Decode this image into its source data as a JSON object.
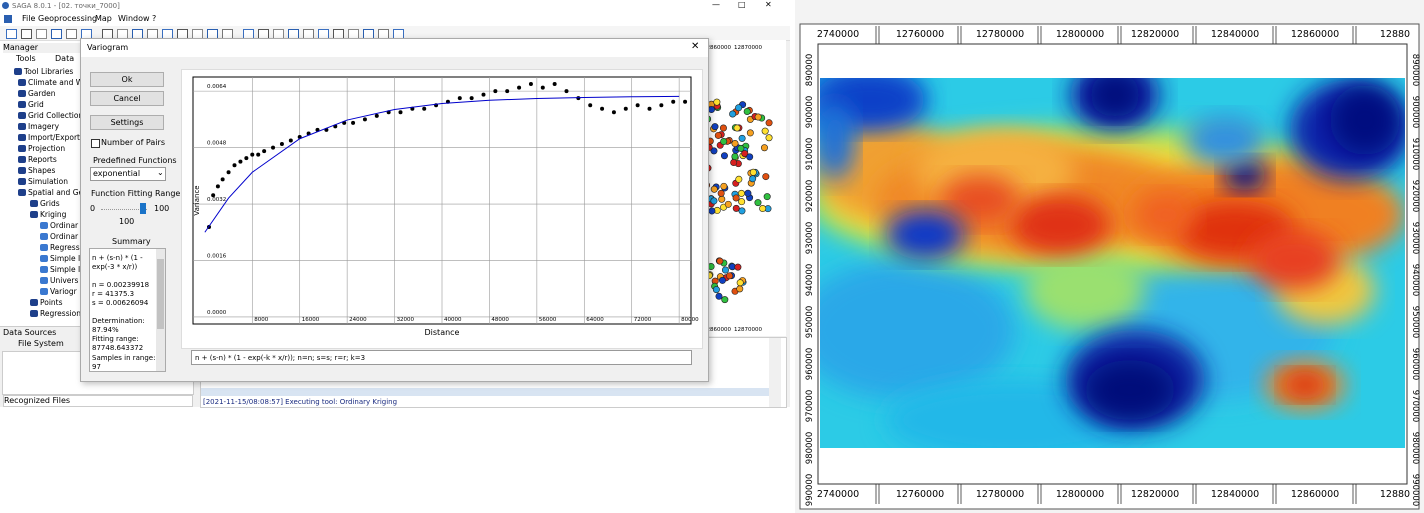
{
  "window": {
    "title": "SAGA 8.0.1 - [02. точки_7000]",
    "menu": [
      "File",
      "Geoprocessing",
      "Map",
      "Window",
      "?"
    ]
  },
  "manager": {
    "title": "Manager",
    "tabs": [
      "Tools",
      "Data"
    ],
    "tree": [
      "Tool Libraries",
      "Climate and W",
      "Garden",
      "Grid",
      "Grid Collection",
      "Imagery",
      "Import/Export",
      "Projection",
      "Reports",
      "Shapes",
      "Simulation",
      "Spatial and Geo",
      "Grids",
      "Kriging",
      "Ordinar",
      "Ordinar",
      "Regress",
      "Simple I",
      "Simple I",
      "Univers",
      "Variogr",
      "Points",
      "Regression"
    ]
  },
  "data_sources": {
    "title": "Data Sources",
    "tabs": [
      "File System"
    ],
    "footer": "Recognized Files"
  },
  "background_map": {
    "top_labels": [
      "12860000",
      "12870000"
    ],
    "bottom_labels": [
      "12860000",
      "12870000"
    ]
  },
  "log": {
    "line": "[2021-11-15/08:08:57] Executing tool: Ordinary Kriging"
  },
  "dialog": {
    "title": "Variogram",
    "buttons": [
      "Ok",
      "Cancel",
      "Settings"
    ],
    "checkbox": "Number of Pairs",
    "functions_label": "Predefined Functions",
    "function": "exponential",
    "range_label": "Function Fitting Range",
    "range_min": "0",
    "range_max": "100",
    "range_value": "100",
    "summary_title": "Summary",
    "summary": [
      "n + (s-n) * (1 -",
      "exp(-3 * x/r))",
      "n = 0.00239918",
      "r = 41375.3",
      "s = 0.00626094",
      "Determination:",
      "87.94%",
      "Fitting range:",
      "87748.643372",
      "Samples in range:",
      "97"
    ],
    "formula": "n + (s-n) * (1 - exp(-k * x/r)); n=n; s=s; r=r; k=3"
  },
  "chart_data": {
    "type": "scatter",
    "xlabel": "Distance",
    "ylabel": "Variance",
    "xlim": [
      -2000,
      82000
    ],
    "ylim": [
      -0.0002,
      0.0068
    ],
    "xticks": [
      8000,
      16000,
      24000,
      32000,
      40000,
      48000,
      56000,
      64000,
      72000,
      80000
    ],
    "yticks": [
      {
        "value": 0,
        "label": "0.0000"
      },
      0.0016,
      0.0032,
      0.0048,
      0.0064
    ],
    "grid": true,
    "series": [
      {
        "type": "scatter",
        "color": "#000000",
        "x": [
          700,
          1400,
          2200,
          3000,
          4000,
          5000,
          6000,
          7000,
          8000,
          9000,
          10000,
          11500,
          13000,
          14500,
          16000,
          17500,
          19000,
          20500,
          22000,
          23500,
          25000,
          27000,
          29000,
          31000,
          33000,
          35000,
          37000,
          39000,
          41000,
          43000,
          45000,
          47000,
          49000,
          51000,
          53000,
          55000,
          57000,
          59000,
          61000,
          63000,
          65000,
          67000,
          69000,
          71000,
          73000,
          75000,
          77000,
          79000,
          81000
        ],
        "values": [
          0.00255,
          0.00345,
          0.0037,
          0.0039,
          0.0041,
          0.0043,
          0.0044,
          0.0045,
          0.0046,
          0.0046,
          0.0047,
          0.0048,
          0.0049,
          0.005,
          0.0051,
          0.0052,
          0.0053,
          0.0053,
          0.0054,
          0.0055,
          0.0055,
          0.0056,
          0.0057,
          0.0058,
          0.0058,
          0.0059,
          0.0059,
          0.006,
          0.0061,
          0.0062,
          0.0062,
          0.0063,
          0.0064,
          0.0064,
          0.0065,
          0.0066,
          0.0065,
          0.0066,
          0.0064,
          0.0062,
          0.006,
          0.0059,
          0.0058,
          0.0059,
          0.006,
          0.0059,
          0.006,
          0.0061,
          0.0061
        ]
      },
      {
        "type": "line",
        "color": "#0000cc",
        "x": [
          0,
          4000,
          8000,
          16000,
          24000,
          32000,
          40000,
          48000,
          56000,
          64000,
          72000,
          80000
        ],
        "values": [
          0.0024,
          0.00337,
          0.0041,
          0.00505,
          0.00558,
          0.00588,
          0.00605,
          0.00614,
          0.00619,
          0.00622,
          0.00624,
          0.00625
        ]
      }
    ]
  },
  "map": {
    "x_labels": [
      "2740000",
      "12760000",
      "12780000",
      "12800000",
      "12820000",
      "12840000",
      "12860000",
      "12880"
    ],
    "y_labels": [
      "890000",
      "900000",
      "910000",
      "920000",
      "930000",
      "940000",
      "950000",
      "960000",
      "970000",
      "980000",
      "990000"
    ]
  }
}
